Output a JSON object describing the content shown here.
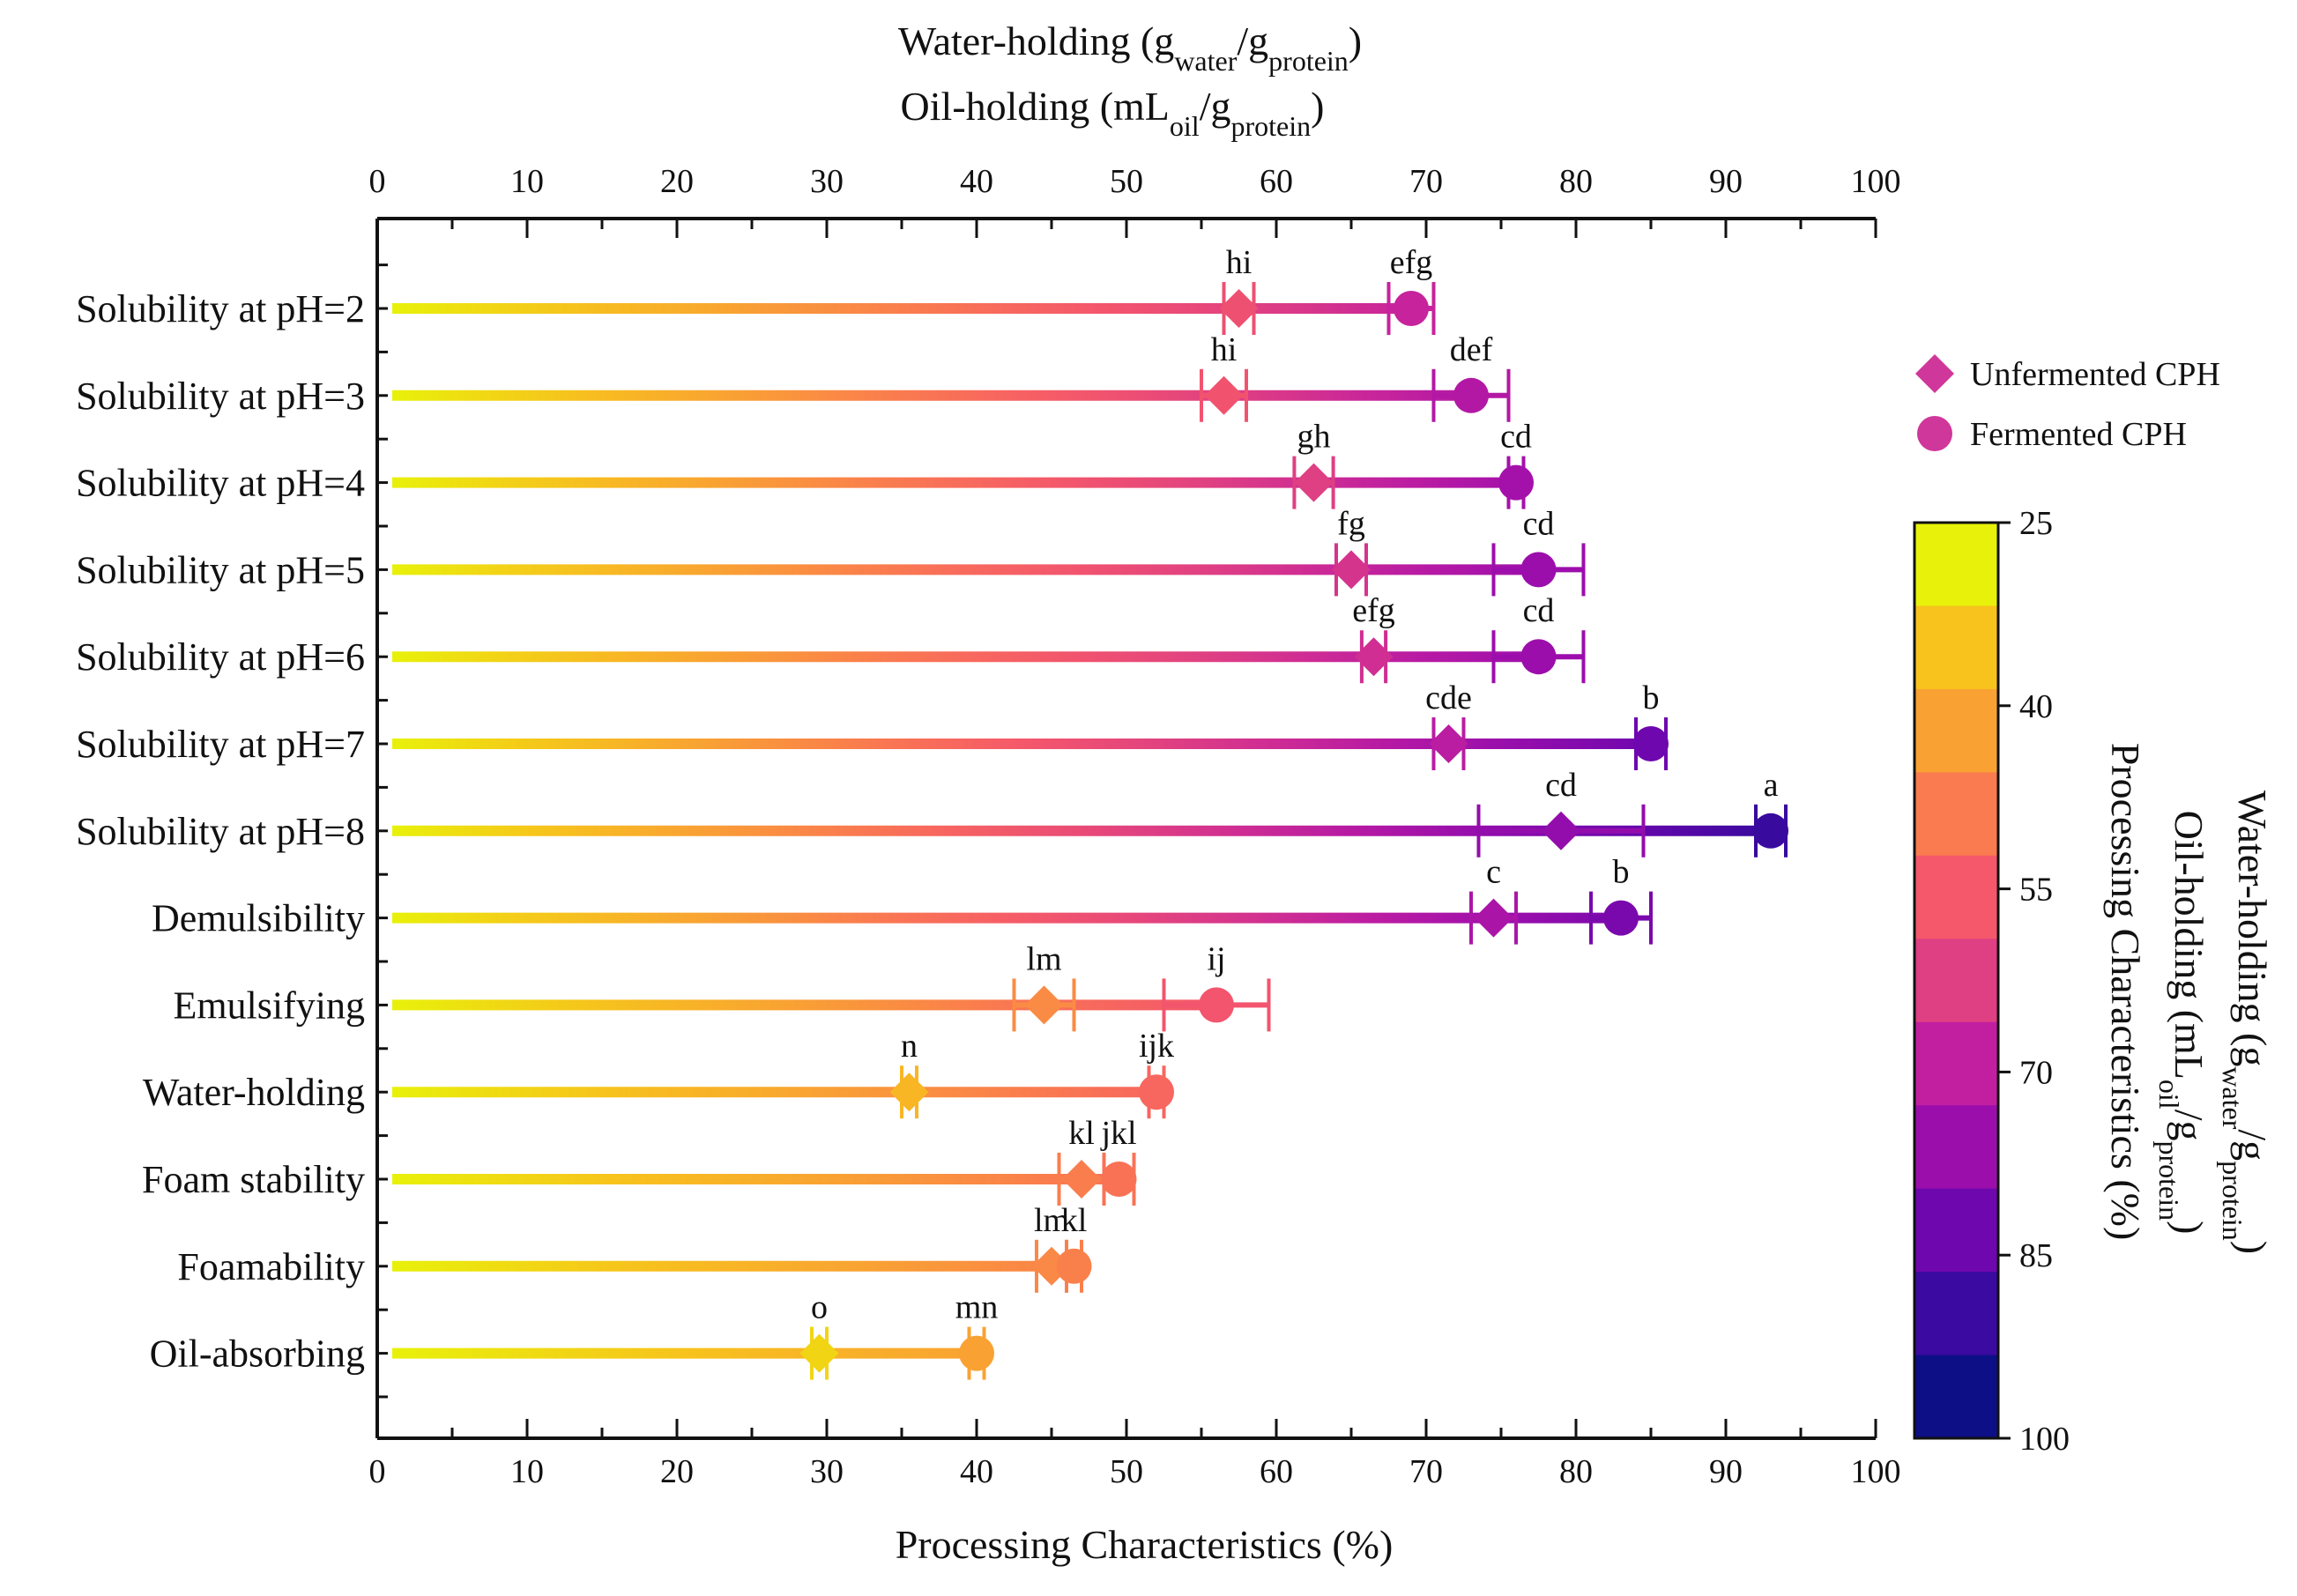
{
  "chart_data": {
    "type": "dumbbell-errorbar",
    "categories": [
      "Solubility at pH=2",
      "Solubility at pH=3",
      "Solubility at pH=4",
      "Solubility at pH=5",
      "Solubility at pH=6",
      "Solubility at pH=7",
      "Solubility at pH=8",
      "Demulsibility",
      "Emulsifying",
      "Water-holding",
      "Foam stability",
      "Foamability",
      "Oil-absorbing"
    ],
    "series": [
      {
        "name": "Unfermented CPH",
        "marker": "diamond",
        "values": [
          57.5,
          56.5,
          62.5,
          65,
          66.5,
          71.5,
          79,
          74.5,
          44.5,
          35.5,
          47,
          45,
          29.5
        ],
        "errors": [
          1,
          1.5,
          1.3,
          1,
          0.8,
          1,
          5.5,
          1.5,
          2,
          0.5,
          1.5,
          1,
          0.5
        ],
        "labels": [
          "hi",
          "hi",
          "gh",
          "fg",
          "efg",
          "cde",
          "cd",
          "c",
          "lm",
          "n",
          "kl",
          "lm",
          "o"
        ]
      },
      {
        "name": "Fermented CPH",
        "marker": "circle",
        "values": [
          69,
          73,
          76,
          77.5,
          77.5,
          85,
          93,
          83,
          56,
          52,
          49.5,
          46.5,
          40
        ],
        "errors": [
          1.5,
          2.5,
          0.5,
          3,
          3,
          1,
          1,
          2,
          3.5,
          0.5,
          1,
          0.5,
          0.5
        ],
        "labels": [
          "efg",
          "def",
          "cd",
          "cd",
          "cd",
          "b",
          "a",
          "b",
          "ij",
          "ijk",
          "jkl",
          "kl",
          "mn"
        ]
      }
    ],
    "xlim": [
      0,
      100
    ],
    "xticks": [
      "0",
      "10",
      "20",
      "30",
      "40",
      "50",
      "60",
      "70",
      "80",
      "90",
      "100"
    ],
    "xlabel": "Processing Characteristics (%)",
    "top_axis": {
      "title_line1": "Water-holding (g",
      "title_line1_sub1": "water",
      "title_line1_mid": "/g",
      "title_line1_sub2": "protein",
      "title_line1_end": ")",
      "title_line2": "Oil-holding (mL",
      "title_line2_sub1": "oil",
      "title_line2_mid": "/g",
      "title_line2_sub2": "protein",
      "title_line2_end": ")"
    },
    "colorbar": {
      "range": [
        25,
        100
      ],
      "ticks": [
        "25",
        "40",
        "55",
        "70",
        "85",
        "100"
      ],
      "tick_values": [
        25,
        40,
        55,
        70,
        85,
        100
      ],
      "colors": [
        "#e8f10a",
        "#f7c31c",
        "#f9a233",
        "#fa7b4f",
        "#f5586a",
        "#df3f83",
        "#c21fa0",
        "#9c0eac",
        "#6e07ae",
        "#3b0aa0",
        "#0d0f86"
      ],
      "label_line1": "Water-holding (g",
      "label_line1_sub1": "water",
      "label_line1_mid": "/g",
      "label_line1_sub2": "protein",
      "label_line1_end": ")",
      "label_line2": "Oil-holding (mL",
      "label_line2_sub1": "oil",
      "label_line2_mid": "/g",
      "label_line2_sub2": "protein",
      "label_line2_end": ")",
      "label_line3": "Processing Characteristics (%)"
    },
    "legend": {
      "position": "top-right",
      "entries": [
        {
          "label": "Unfermented CPH",
          "marker": "diamond"
        },
        {
          "label": "Fermented CPH",
          "marker": "circle"
        }
      ]
    }
  }
}
